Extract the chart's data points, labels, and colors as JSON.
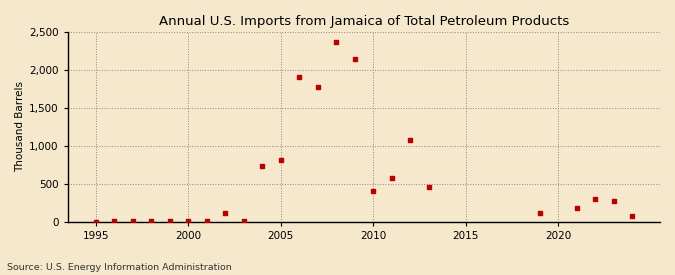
{
  "title": "Annual U.S. Imports from Jamaica of Total Petroleum Products",
  "ylabel": "Thousand Barrels",
  "source": "Source: U.S. Energy Information Administration",
  "background_color": "#f5e8cc",
  "plot_bg_color": "#f5e8cc",
  "dot_color": "#bb0000",
  "xlim": [
    1993.5,
    2025.5
  ],
  "ylim": [
    0,
    2500
  ],
  "yticks": [
    0,
    500,
    1000,
    1500,
    2000,
    2500
  ],
  "ytick_labels": [
    "0",
    "500",
    "1,000",
    "1,500",
    "2,000",
    "2,500"
  ],
  "xticks": [
    1995,
    2000,
    2005,
    2010,
    2015,
    2020
  ],
  "data": [
    [
      1995,
      2
    ],
    [
      1996,
      5
    ],
    [
      1997,
      4
    ],
    [
      1998,
      6
    ],
    [
      1999,
      4
    ],
    [
      2000,
      6
    ],
    [
      2001,
      10
    ],
    [
      2002,
      115
    ],
    [
      2003,
      12
    ],
    [
      2004,
      730
    ],
    [
      2005,
      810
    ],
    [
      2006,
      1900
    ],
    [
      2007,
      1775
    ],
    [
      2008,
      2370
    ],
    [
      2009,
      2150
    ],
    [
      2010,
      400
    ],
    [
      2011,
      575
    ],
    [
      2012,
      1070
    ],
    [
      2013,
      455
    ],
    [
      2019,
      110
    ],
    [
      2021,
      175
    ],
    [
      2022,
      295
    ],
    [
      2023,
      270
    ],
    [
      2024,
      75
    ]
  ],
  "title_fontsize": 9.5,
  "axis_fontsize": 7.5,
  "source_fontsize": 6.8
}
